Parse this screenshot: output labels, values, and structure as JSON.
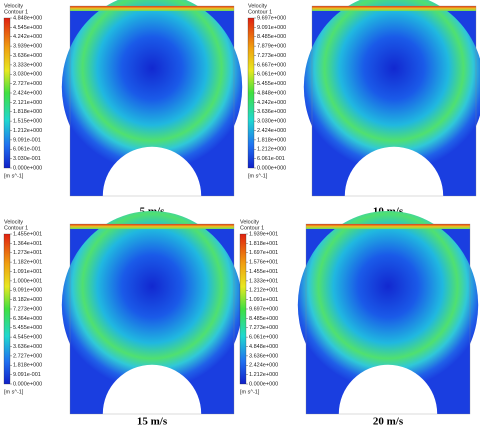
{
  "panels": [
    {
      "legend": {
        "title": "Velocity",
        "subtitle": "Contour 1",
        "labels": [
          "4.848e+000",
          "4.545e+000",
          "4.242e+000",
          "3.939e+000",
          "3.636e+000",
          "3.333e+000",
          "3.030e+000",
          "2.727e+000",
          "2.424e+000",
          "2.121e+000",
          "1.818e+000",
          "1.515e+000",
          "1.212e+000",
          "9.091e-001",
          "6.061e-001",
          "3.030e-001",
          "0.000e+000"
        ],
        "unit": "[m s^-1]"
      },
      "caption": "5 m/s"
    },
    {
      "legend": {
        "title": "Velocity",
        "subtitle": "Contour 1",
        "labels": [
          "9.697e+000",
          "9.091e+000",
          "8.485e+000",
          "7.879e+000",
          "7.273e+000",
          "6.667e+000",
          "6.061e+000",
          "5.455e+000",
          "4.848e+000",
          "4.242e+000",
          "3.636e+000",
          "3.030e+000",
          "2.424e+000",
          "1.818e+000",
          "1.212e+000",
          "6.061e-001",
          "0.000e+000"
        ],
        "unit": "[m s^-1]"
      },
      "caption": "10 m/s"
    },
    {
      "legend": {
        "title": "Velocity",
        "subtitle": "Contour 1",
        "labels": [
          "1.455e+001",
          "1.364e+001",
          "1.273e+001",
          "1.182e+001",
          "1.091e+001",
          "1.000e+001",
          "9.091e+000",
          "8.182e+000",
          "7.273e+000",
          "6.364e+000",
          "5.455e+000",
          "4.545e+000",
          "3.636e+000",
          "2.727e+000",
          "1.818e+000",
          "9.091e-001",
          "0.000e+000"
        ],
        "unit": "[m s^-1]"
      },
      "caption": "15 m/s"
    },
    {
      "legend": {
        "title": "Velocity",
        "subtitle": "Contour 1",
        "labels": [
          "1.939e+001",
          "1.818e+001",
          "1.697e+001",
          "1.576e+001",
          "1.455e+001",
          "1.333e+001",
          "1.212e+001",
          "1.091e+001",
          "9.697e+000",
          "8.485e+000",
          "7.273e+000",
          "6.061e+000",
          "4.848e+000",
          "3.636e+000",
          "2.424e+000",
          "1.212e+000",
          "0.000e+000"
        ],
        "unit": "[m s^-1]"
      },
      "caption": "20 m/s"
    }
  ]
}
